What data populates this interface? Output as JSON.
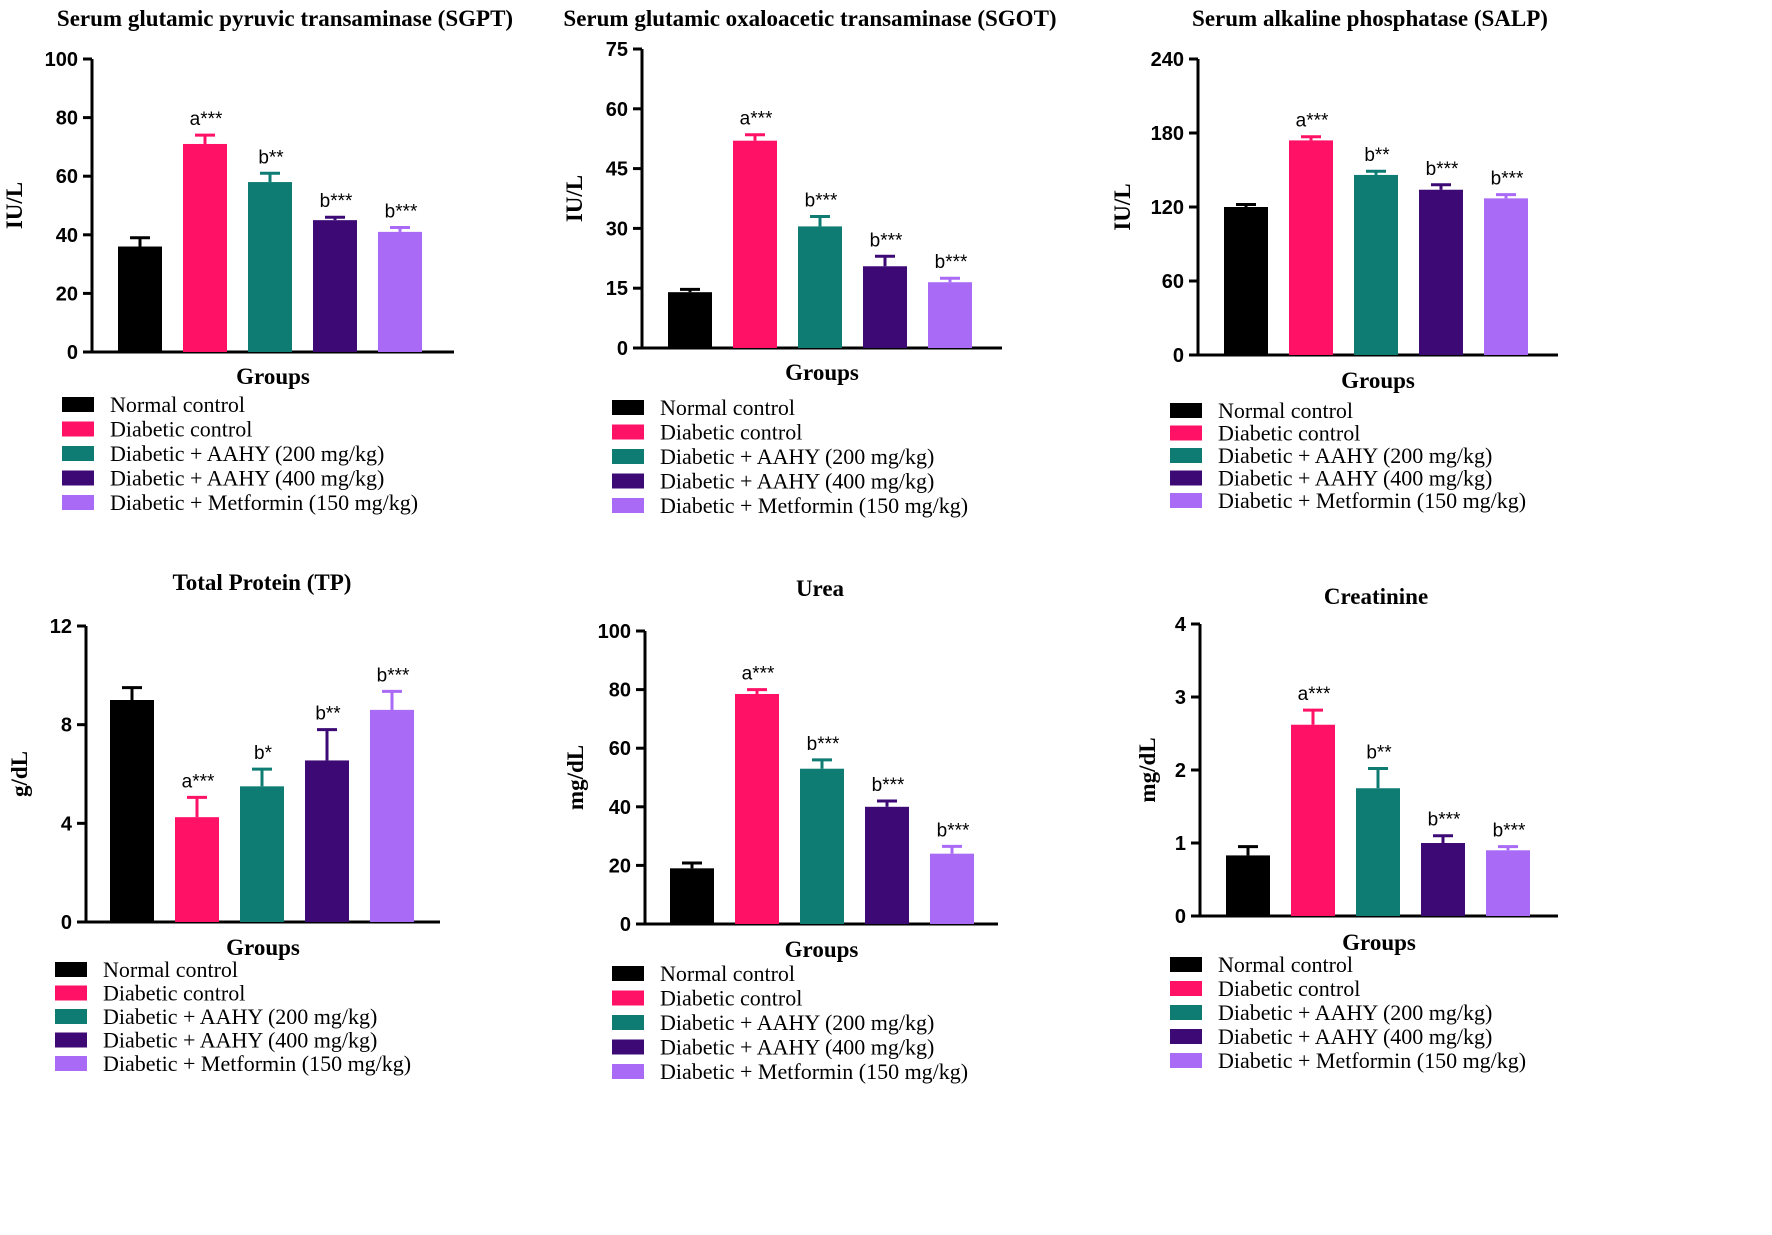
{
  "legend_items": [
    {
      "name": "Normal control",
      "color": "#000000"
    },
    {
      "name": "Diabetic control",
      "color": "#ff1166"
    },
    {
      "name": "Diabetic + AAHY (200 mg/kg)",
      "color": "#0e7c73"
    },
    {
      "name": "Diabetic + AAHY (400 mg/kg)",
      "color": "#3d0a75"
    },
    {
      "name": "Diabetic + Metformin (150 mg/kg)",
      "color": "#a96af6"
    }
  ],
  "chart_data": [
    {
      "type": "bar",
      "title": "Serum glutamic pyruvic transaminase (SGPT)",
      "xlabel": "Groups",
      "ylabel": "IU/L",
      "ylim": [
        0,
        100
      ],
      "yticks": [
        "0",
        "20",
        "40",
        "60",
        "80",
        "100"
      ],
      "categories": [
        "Normal control",
        "Diabetic control",
        "Diabetic + AAHY (200 mg/kg)",
        "Diabetic + AAHY (400 mg/kg)",
        "Diabetic + Metformin (150 mg/kg)"
      ],
      "values": [
        36,
        71,
        58,
        45,
        41
      ],
      "errors": [
        3,
        3,
        3,
        1,
        1.5
      ],
      "annotations": [
        "",
        "a***",
        "b**",
        "b***",
        "b***"
      ]
    },
    {
      "type": "bar",
      "title": "Serum glutamic oxaloacetic transaminase (SGOT)",
      "xlabel": "Groups",
      "ylabel": "IU/L",
      "ylim": [
        0,
        75
      ],
      "yticks": [
        "0",
        "15",
        "30",
        "45",
        "60",
        "75"
      ],
      "categories": [
        "Normal control",
        "Diabetic control",
        "Diabetic + AAHY (200 mg/kg)",
        "Diabetic + AAHY (400 mg/kg)",
        "Diabetic + Metformin (150 mg/kg)"
      ],
      "values": [
        14,
        52,
        30.5,
        20.5,
        16.5
      ],
      "errors": [
        0.7,
        1.5,
        2.5,
        2.5,
        1
      ],
      "annotations": [
        "",
        "a***",
        "b***",
        "b***",
        "b***"
      ]
    },
    {
      "type": "bar",
      "title": "Serum alkaline phosphatase (SALP)",
      "xlabel": "Groups",
      "ylabel": "IU/L",
      "ylim": [
        0,
        240
      ],
      "yticks": [
        "0",
        "60",
        "120",
        "180",
        "240"
      ],
      "categories": [
        "Normal control",
        "Diabetic control",
        "Diabetic + AAHY (200 mg/kg)",
        "Diabetic + AAHY (400 mg/kg)",
        "Diabetic + Metformin (150 mg/kg)"
      ],
      "values": [
        120,
        174,
        146,
        134,
        127
      ],
      "errors": [
        2,
        3,
        3,
        4,
        3
      ],
      "annotations": [
        "",
        "a***",
        "b**",
        "b***",
        "b***"
      ]
    },
    {
      "type": "bar",
      "title": "Total Protein (TP)",
      "xlabel": "Groups",
      "ylabel": "g/dL",
      "ylim": [
        0,
        12
      ],
      "yticks": [
        "0",
        "4",
        "8",
        "12"
      ],
      "categories": [
        "Normal control",
        "Diabetic control",
        "Diabetic + AAHY (200 mg/kg)",
        "Diabetic + AAHY (400 mg/kg)",
        "Diabetic + Metformin (150 mg/kg)"
      ],
      "values": [
        9,
        4.25,
        5.5,
        6.55,
        8.6
      ],
      "errors": [
        0.5,
        0.8,
        0.7,
        1.25,
        0.75
      ],
      "annotations": [
        "",
        "a***",
        "b*",
        "b**",
        "b***"
      ]
    },
    {
      "type": "bar",
      "title": "Urea",
      "xlabel": "Groups",
      "ylabel": "mg/dL",
      "ylim": [
        0,
        100
      ],
      "yticks": [
        "0",
        "20",
        "40",
        "60",
        "80",
        "100"
      ],
      "categories": [
        "Normal control",
        "Diabetic control",
        "Diabetic + AAHY (200 mg/kg)",
        "Diabetic + AAHY (400 mg/kg)",
        "Diabetic + Metformin (150 mg/kg)"
      ],
      "values": [
        19,
        78.5,
        53,
        40,
        24
      ],
      "errors": [
        1.8,
        1.5,
        3,
        2,
        2.5
      ],
      "annotations": [
        "",
        "a***",
        "b***",
        "b***",
        "b***"
      ]
    },
    {
      "type": "bar",
      "title": "Creatinine",
      "xlabel": "Groups",
      "ylabel": "mg/dL",
      "ylim": [
        0,
        4
      ],
      "yticks": [
        "0",
        "1",
        "2",
        "3",
        "4"
      ],
      "categories": [
        "Normal control",
        "Diabetic control",
        "Diabetic + AAHY (200 mg/kg)",
        "Diabetic + AAHY (400 mg/kg)",
        "Diabetic + Metformin (150 mg/kg)"
      ],
      "values": [
        0.83,
        2.62,
        1.75,
        1.0,
        0.9
      ],
      "errors": [
        0.12,
        0.2,
        0.27,
        0.1,
        0.05
      ],
      "annotations": [
        "",
        "a***",
        "b**",
        "b***",
        "b***"
      ]
    }
  ]
}
